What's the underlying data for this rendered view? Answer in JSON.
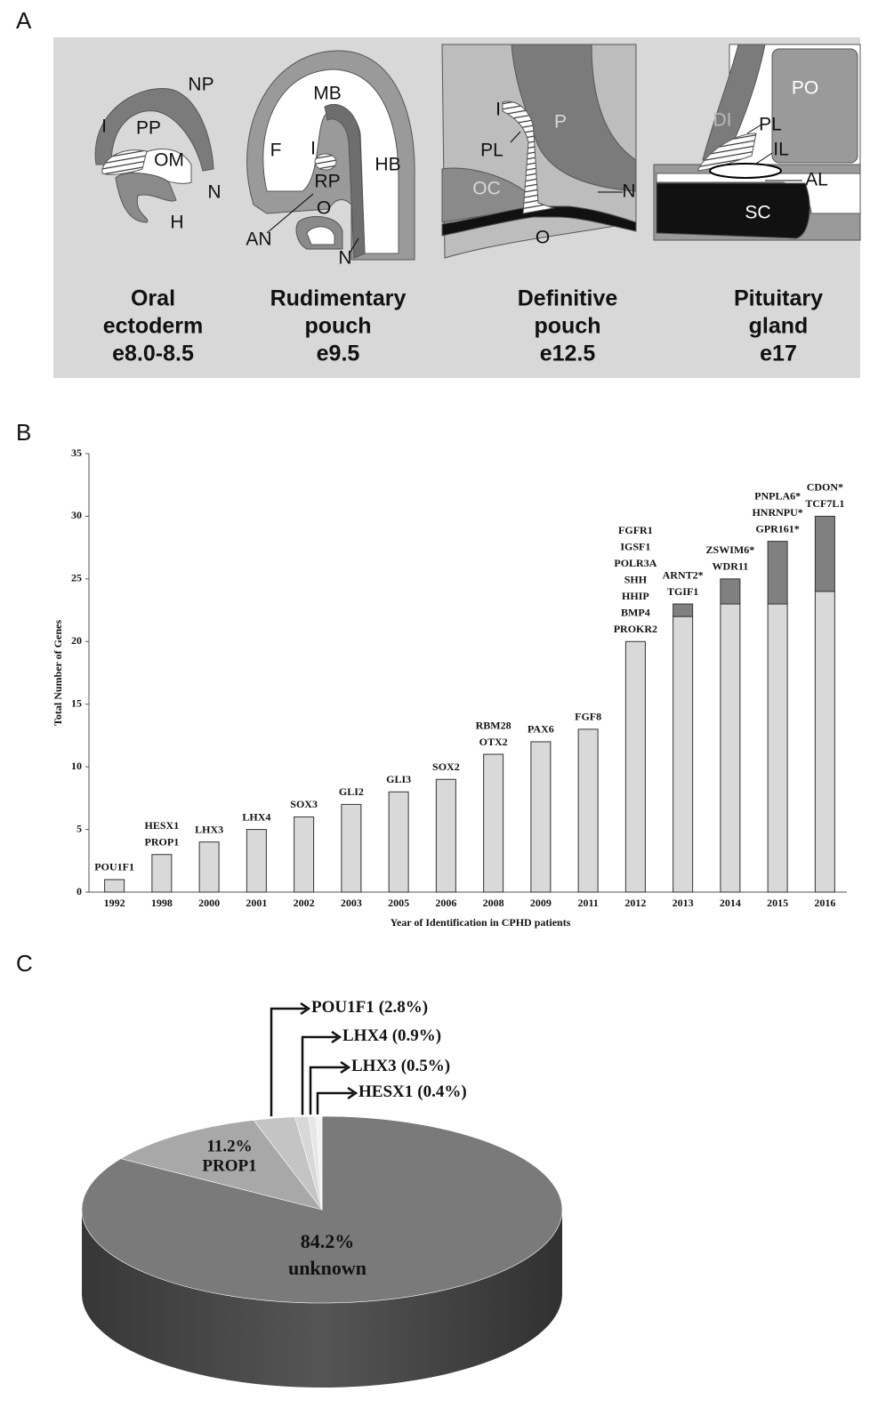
{
  "panel_labels": [
    "A",
    "B",
    "C"
  ],
  "diagram": {
    "stages": [
      {
        "title": [
          "Oral",
          "ectoderm",
          "e8.0-8.5"
        ],
        "labels": [
          "NP",
          "I",
          "PP",
          "OM",
          "N",
          "H"
        ]
      },
      {
        "title": [
          "Rudimentary",
          "pouch",
          "e9.5"
        ],
        "labels": [
          "MB",
          "F",
          "I",
          "HB",
          "RP",
          "O",
          "AN",
          "N"
        ]
      },
      {
        "title": [
          "Definitive",
          "pouch",
          "e12.5"
        ],
        "labels": [
          "I",
          "P",
          "PL",
          "OC",
          "N",
          "O"
        ]
      },
      {
        "title": [
          "Pituitary",
          "gland",
          "e17"
        ],
        "labels": [
          "PO",
          "DI",
          "PL",
          "IL",
          "AL",
          "SC"
        ]
      }
    ]
  },
  "chart_data": [
    {
      "type": "bar",
      "stacked": true,
      "categories": [
        "1992",
        "1998",
        "2000",
        "2001",
        "2002",
        "2003",
        "2005",
        "2006",
        "2008",
        "2009",
        "2011",
        "2012",
        "2013",
        "2014",
        "2015",
        "2016"
      ],
      "series": [
        {
          "color": "#d9d9d9",
          "values": [
            1,
            3,
            4,
            5,
            6,
            7,
            8,
            9,
            11,
            12,
            13,
            20,
            22,
            23,
            23,
            24
          ]
        },
        {
          "color": "#808080",
          "values": [
            0,
            0,
            0,
            0,
            0,
            0,
            0,
            0,
            0,
            0,
            0,
            0,
            1,
            2,
            5,
            6
          ]
        }
      ],
      "annotations": [
        [
          "POU1F1"
        ],
        [
          "HESX1",
          "PROP1"
        ],
        [
          "LHX3"
        ],
        [
          "LHX4"
        ],
        [
          "SOX3"
        ],
        [
          "GLI2"
        ],
        [
          "GLI3"
        ],
        [
          "SOX2"
        ],
        [
          "RBM28",
          "OTX2"
        ],
        [
          "PAX6"
        ],
        [
          "FGF8"
        ],
        [
          "FGFR1",
          "IGSF1",
          "POLR3A",
          "SHH",
          "HHIP",
          "BMP4",
          "PROKR2"
        ],
        [
          "ARNT2*",
          "TGIF1"
        ],
        [
          "ZSWIM6*",
          "WDR11"
        ],
        [
          "PNPLA6*",
          "HNRNPU*",
          "GPR161*"
        ],
        [
          "CDON*",
          "TCF7L1"
        ]
      ],
      "ylim": [
        0,
        35
      ],
      "yticks": [
        0,
        5,
        10,
        15,
        20,
        25,
        30,
        35
      ],
      "ylabel": "Total Number of Genes",
      "xlabel": "Year of Identification in CPHD patients"
    },
    {
      "type": "pie",
      "style": "3d",
      "categories": [
        "unknown",
        "PROP1",
        "POU1F1",
        "LHX4",
        "LHX3",
        "HESX1"
      ],
      "values": [
        84.2,
        11.2,
        2.8,
        0.9,
        0.5,
        0.4
      ],
      "value_labels": [
        "84.2%",
        "11.2%",
        "(2.8%)",
        "(0.9%)",
        "(0.5%)",
        "(0.4%)"
      ],
      "colors": [
        "#7a7a7a",
        "#a8a8a8",
        "#c4c4c4",
        "#d8d8d8",
        "#e6e6e6",
        "#f3f3f3"
      ]
    }
  ]
}
